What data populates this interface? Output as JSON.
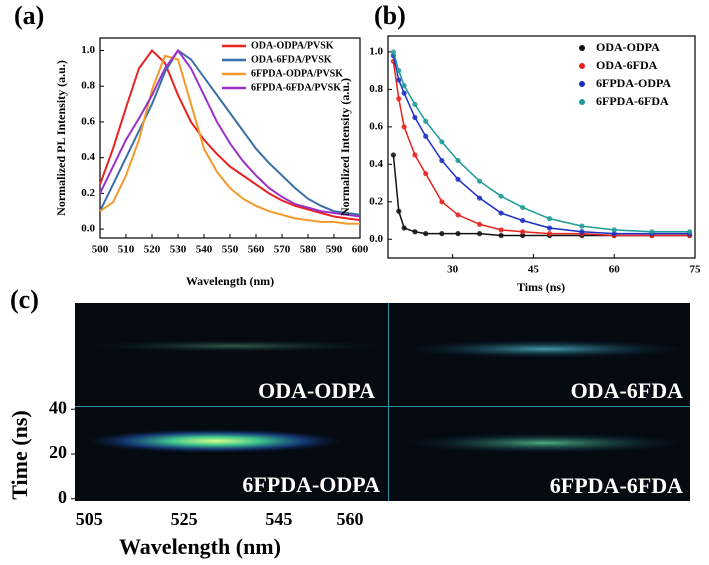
{
  "chart_data": [
    {
      "type": "line",
      "panel_label": "(a)",
      "xlabel": "Wavelength (nm)",
      "ylabel": "Normalized PL Intensity (a.u.)",
      "x": [
        500,
        505,
        510,
        515,
        520,
        525,
        530,
        535,
        540,
        545,
        550,
        555,
        560,
        565,
        570,
        575,
        580,
        585,
        590,
        595,
        600
      ],
      "xlim": [
        500,
        600
      ],
      "xticks": [
        500,
        510,
        520,
        530,
        540,
        550,
        560,
        570,
        580,
        590,
        600
      ],
      "ylim": [
        -0.05,
        1.07
      ],
      "yticks": [
        {
          "value": 0,
          "label": "0.0"
        },
        0.2,
        0.4,
        0.6,
        0.8,
        {
          "value": 1,
          "label": "1.0"
        }
      ],
      "series": [
        {
          "name": "ODA-ODPA/PVSK",
          "color": "#e8231f",
          "values": [
            0.25,
            0.45,
            0.68,
            0.9,
            1.0,
            0.93,
            0.75,
            0.6,
            0.5,
            0.42,
            0.35,
            0.3,
            0.25,
            0.2,
            0.16,
            0.13,
            0.11,
            0.09,
            0.07,
            0.06,
            0.05
          ]
        },
        {
          "name": "ODA-6FDA/PVSK",
          "color": "#3a6fa8",
          "values": [
            0.1,
            0.25,
            0.4,
            0.55,
            0.7,
            0.88,
            1.0,
            0.95,
            0.85,
            0.75,
            0.65,
            0.55,
            0.45,
            0.37,
            0.3,
            0.23,
            0.17,
            0.13,
            0.1,
            0.09,
            0.08
          ]
        },
        {
          "name": "6FPDA-ODPA/PVSK",
          "color": "#f39a2b",
          "values": [
            0.1,
            0.15,
            0.3,
            0.5,
            0.78,
            0.97,
            0.95,
            0.7,
            0.45,
            0.32,
            0.23,
            0.17,
            0.13,
            0.1,
            0.08,
            0.06,
            0.05,
            0.04,
            0.04,
            0.03,
            0.03
          ]
        },
        {
          "name": "6FPDA-6FDA/PVSK",
          "color": "#9b32c8",
          "values": [
            0.2,
            0.35,
            0.5,
            0.62,
            0.75,
            0.9,
            1.0,
            0.9,
            0.75,
            0.6,
            0.48,
            0.38,
            0.3,
            0.23,
            0.18,
            0.14,
            0.12,
            0.1,
            0.09,
            0.08,
            0.07
          ]
        }
      ]
    },
    {
      "type": "scatter",
      "panel_label": "(b)",
      "xlabel": "Tims (ns)",
      "ylabel": "Normalized Intensity (a.u.)",
      "x": [
        19,
        20,
        21,
        23,
        25,
        28,
        31,
        35,
        39,
        43,
        48,
        54,
        60,
        67,
        74
      ],
      "xlim": [
        18,
        75
      ],
      "xticks": [
        30,
        45,
        60,
        75
      ],
      "ylim": [
        -0.1,
        1.085
      ],
      "yticks": [
        {
          "value": 0,
          "label": "0.0"
        },
        0.2,
        0.4,
        0.6,
        0.8,
        {
          "value": 1,
          "label": "1.0"
        }
      ],
      "series": [
        {
          "name": "ODA-ODPA",
          "color": "#111111",
          "values": [
            0.45,
            0.15,
            0.06,
            0.04,
            0.03,
            0.03,
            0.03,
            0.03,
            0.02,
            0.02,
            0.02,
            0.02,
            0.02,
            0.02,
            0.02
          ]
        },
        {
          "name": "ODA-6FDA",
          "color": "#e8231f",
          "values": [
            0.95,
            0.75,
            0.6,
            0.45,
            0.35,
            0.2,
            0.13,
            0.08,
            0.05,
            0.04,
            0.03,
            0.03,
            0.02,
            0.02,
            0.02
          ]
        },
        {
          "name": "6FPDA-ODPA",
          "color": "#1c2fc4",
          "values": [
            0.98,
            0.85,
            0.78,
            0.65,
            0.55,
            0.42,
            0.32,
            0.22,
            0.14,
            0.1,
            0.06,
            0.04,
            0.03,
            0.03,
            0.03
          ]
        },
        {
          "name": "6FPDA-6FDA",
          "color": "#1e9b96",
          "values": [
            1.0,
            0.9,
            0.82,
            0.72,
            0.63,
            0.52,
            0.42,
            0.31,
            0.23,
            0.17,
            0.11,
            0.07,
            0.05,
            0.04,
            0.04
          ]
        }
      ]
    },
    {
      "type": "image",
      "panel_label": "(c)",
      "xlabel": "Wavelength (nm)",
      "ylabel": "Time (ns)",
      "xlim": [
        502,
        568
      ],
      "xticks": [
        505,
        525,
        545,
        560
      ],
      "ylim": [
        -1,
        41
      ],
      "yticks": [
        0,
        20,
        40
      ],
      "panels": [
        "ODA-ODPA",
        "ODA-6FDA",
        "6FPDA-ODPA",
        "6FPDA-6FDA"
      ]
    }
  ]
}
